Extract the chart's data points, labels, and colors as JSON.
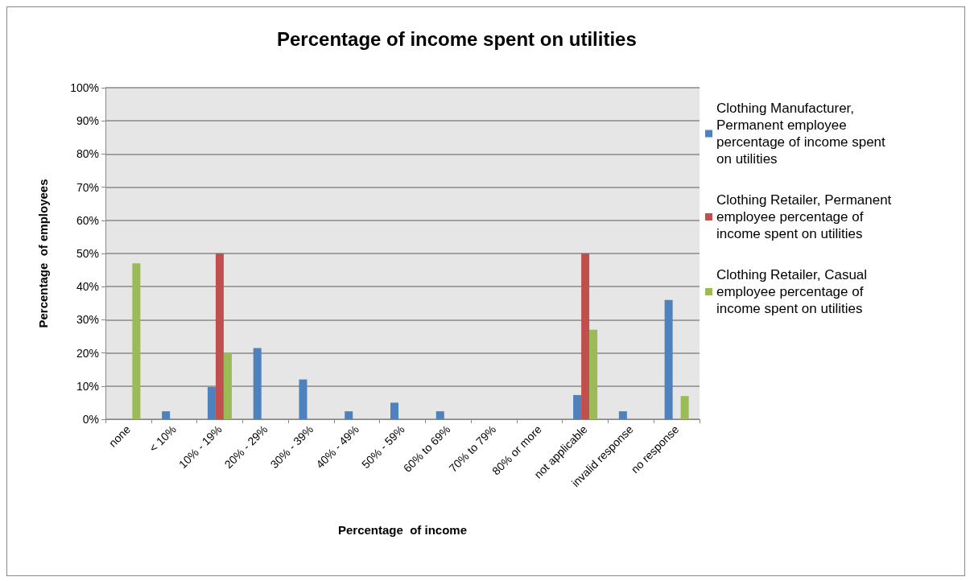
{
  "chart_data": {
    "type": "bar",
    "title": "Percentage of income spent on utilities",
    "xlabel": "Percentage  of income",
    "ylabel": "Percentage  of employees",
    "categories": [
      "none",
      "< 10%",
      "10% - 19%",
      "20% - 29%",
      "30% - 39%",
      "40% - 49%",
      "50% - 59%",
      "60% to 69%",
      "70% to 79%",
      "80% or more",
      "not applicable",
      "invalid response",
      "no response"
    ],
    "series": [
      {
        "name": "Clothing Manufacturer, Permanent employee percentage of income spent on utilities",
        "color": "#4f81bd",
        "values": [
          0,
          2.4,
          9.7,
          21.5,
          12,
          2.4,
          5,
          2.4,
          0,
          0,
          7.3,
          2.4,
          36
        ]
      },
      {
        "name": "Clothing Retailer, Permanent employee percentage of income spent on utilities",
        "color": "#c0504d",
        "values": [
          0,
          0,
          50,
          0,
          0,
          0,
          0,
          0,
          0,
          0,
          50,
          0,
          0
        ]
      },
      {
        "name": "Clothing Retailer, Casual employee percentage of income spent on utilities",
        "color": "#9bbb59",
        "values": [
          47,
          0,
          20,
          0,
          0,
          0,
          0,
          0,
          0,
          0,
          27,
          0,
          7
        ]
      }
    ],
    "ylim": [
      0,
      100
    ],
    "yticks": [
      {
        "value": 0,
        "label": "0%"
      },
      {
        "value": 10,
        "label": "10%"
      },
      {
        "value": 20,
        "label": "20%"
      },
      {
        "value": 30,
        "label": "30%"
      },
      {
        "value": 40,
        "label": "40%"
      },
      {
        "value": 50,
        "label": "50%"
      },
      {
        "value": 60,
        "label": "60%"
      },
      {
        "value": 70,
        "label": "70%"
      },
      {
        "value": 80,
        "label": "80%"
      },
      {
        "value": 90,
        "label": "90%"
      },
      {
        "value": 100,
        "label": "100%"
      }
    ],
    "grid": "y",
    "legend": "right"
  }
}
